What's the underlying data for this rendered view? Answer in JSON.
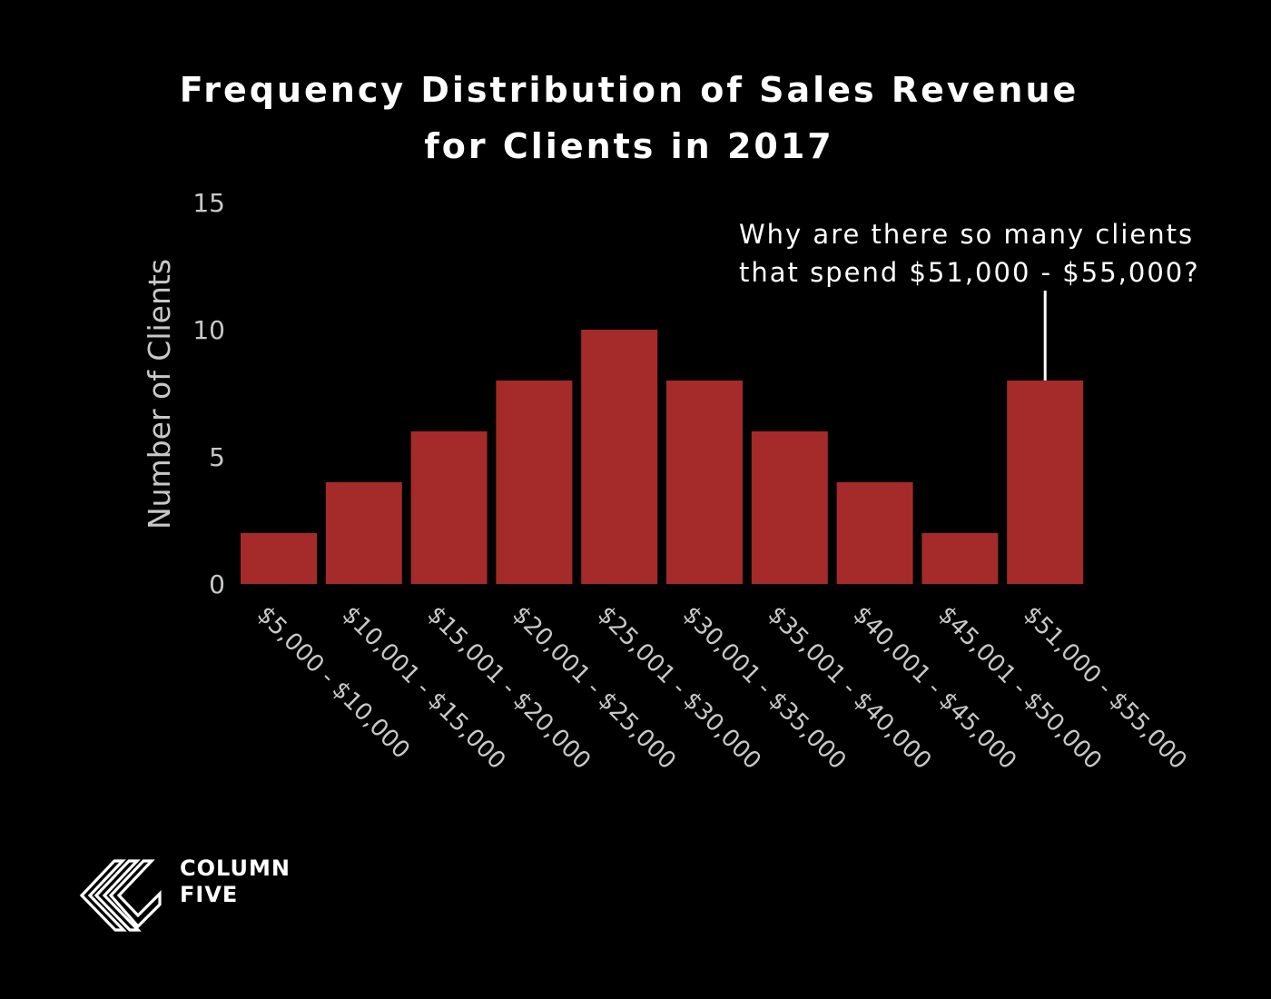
{
  "title": {
    "line1": "Frequency Distribution of Sales Revenue",
    "line2": "for Clients in 2017"
  },
  "chart_data": {
    "type": "bar",
    "categories": [
      "$5,000 - $10,000",
      "$10,001 - $15,000",
      "$15,001 - $20,000",
      "$20,001 - $25,000",
      "$25,001 - $30,000",
      "$30,001 - $35,000",
      "$35,001 - $40,000",
      "$40,001 - $45,000",
      "$45,001 - $50,000",
      "$51,000 - $55,000"
    ],
    "values": [
      2,
      4,
      6,
      8,
      10,
      8,
      6,
      4,
      2,
      8
    ],
    "ylabel": "Number of Clients",
    "xlabel": "",
    "ylim": [
      0,
      15
    ],
    "yticks": [
      0,
      5,
      10,
      15
    ],
    "grid": false,
    "bar_color": "#a52a2a",
    "annotation": {
      "category_index": 9,
      "line1": "Why are there so many clients",
      "line2": "that spend $51,000 - $55,000?"
    }
  },
  "logo": {
    "line1": "COLUMN",
    "line2": "FIVE"
  },
  "colors": {
    "background": "#000000",
    "text": "#ffffff",
    "axis_text": "#c8c8c8"
  }
}
